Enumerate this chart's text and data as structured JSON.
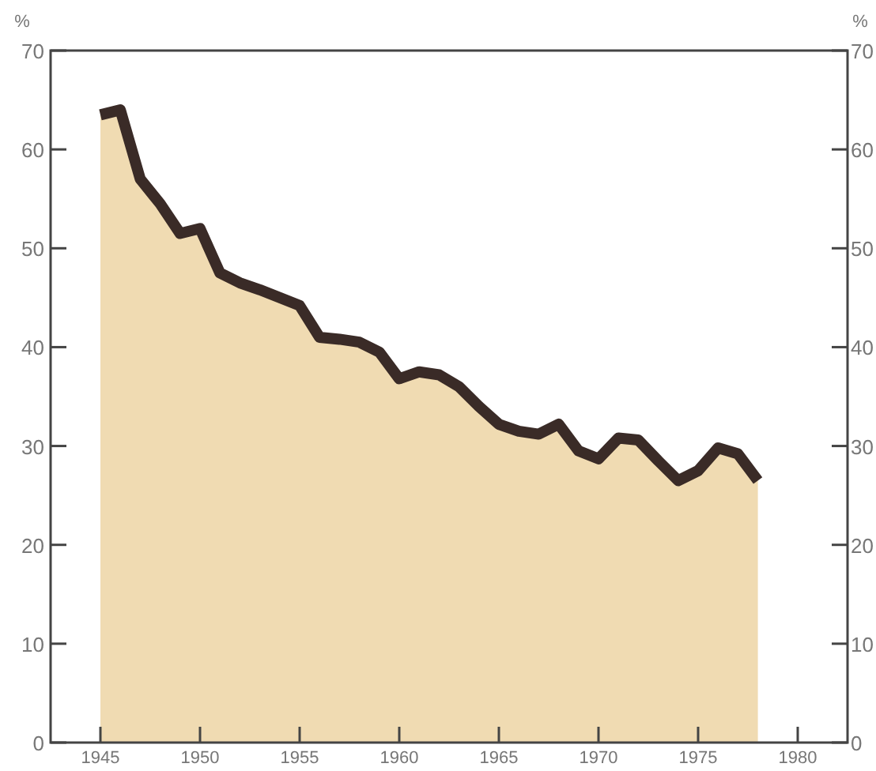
{
  "chart_data": {
    "type": "area",
    "ylabel": "%",
    "y2label": "%",
    "x": [
      1945,
      1946,
      1947,
      1948,
      1949,
      1950,
      1951,
      1952,
      1953,
      1954,
      1955,
      1956,
      1957,
      1958,
      1959,
      1960,
      1961,
      1962,
      1963,
      1964,
      1965,
      1966,
      1967,
      1968,
      1969,
      1970,
      1971,
      1972,
      1973,
      1974,
      1975,
      1976,
      1977,
      1978
    ],
    "series": [
      {
        "color": "#3a2b27",
        "values": [
          63.5,
          64,
          57,
          54.5,
          51.5,
          52,
          47.5,
          46.5,
          45.8,
          45,
          44.2,
          41,
          40.8,
          40.5,
          39.5,
          36.8,
          37.5,
          37.2,
          36,
          34,
          32.2,
          31.5,
          31.2,
          32.2,
          29.5,
          28.7,
          30.8,
          30.6,
          28.5,
          26.5,
          27.5,
          29.8,
          29.2,
          26.5
        ]
      }
    ],
    "xlim": [
      1942.5,
      1982.5
    ],
    "xticks": [
      1945,
      1950,
      1955,
      1960,
      1965,
      1970,
      1975,
      1980
    ],
    "ylim": [
      0,
      70
    ],
    "yticks": [
      0,
      10,
      20,
      30,
      40,
      50,
      60,
      70
    ],
    "y2lim": [
      0,
      70
    ],
    "y2ticks": [
      0,
      10,
      20,
      30,
      40,
      50,
      60,
      70
    ],
    "grid": false
  }
}
